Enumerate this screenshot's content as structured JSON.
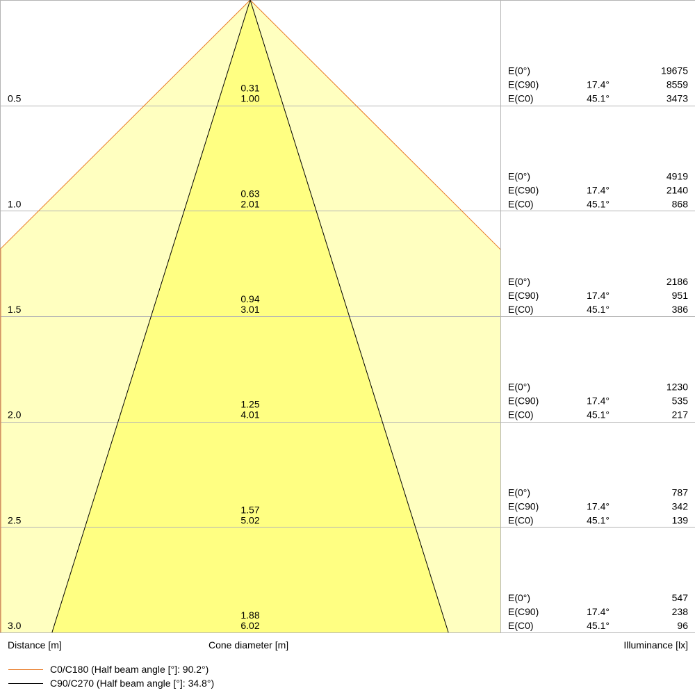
{
  "chart_data": {
    "type": "beam cone diagram",
    "rows": [
      {
        "distance": "0.5",
        "cone_c90": "0.31",
        "cone_c0": "1.00",
        "e0": "19675",
        "ec90_angle": "17.4°",
        "ec90": "8559",
        "ec0_angle": "45.1°",
        "ec0": "3473"
      },
      {
        "distance": "1.0",
        "cone_c90": "0.63",
        "cone_c0": "2.01",
        "e0": "4919",
        "ec90_angle": "17.4°",
        "ec90": "2140",
        "ec0_angle": "45.1°",
        "ec0": "868"
      },
      {
        "distance": "1.5",
        "cone_c90": "0.94",
        "cone_c0": "3.01",
        "e0": "2186",
        "ec90_angle": "17.4°",
        "ec90": "951",
        "ec0_angle": "45.1°",
        "ec0": "386"
      },
      {
        "distance": "2.0",
        "cone_c90": "1.25",
        "cone_c0": "4.01",
        "e0": "1230",
        "ec90_angle": "17.4°",
        "ec90": "535",
        "ec0_angle": "45.1°",
        "ec0": "217"
      },
      {
        "distance": "2.5",
        "cone_c90": "1.57",
        "cone_c0": "5.02",
        "e0": "787",
        "ec90_angle": "17.4°",
        "ec90": "342",
        "ec0_angle": "45.1°",
        "ec0": "139"
      },
      {
        "distance": "3.0",
        "cone_c90": "1.88",
        "cone_c0": "6.02",
        "e0": "547",
        "ec90_angle": "17.4°",
        "ec90": "238",
        "ec0_angle": "45.1°",
        "ec0": "96"
      }
    ],
    "e0_label": "E(0°)",
    "ec90_label": "E(C90)",
    "ec0_label": "E(C0)",
    "half_beam_angle_c0_deg": 90.2,
    "half_beam_angle_c90_deg": 34.8,
    "distance_range_m": [
      0,
      3.0
    ]
  },
  "labels": {
    "distance_axis": "Distance [m]",
    "cone_axis": "Cone diameter [m]",
    "illuminance_axis": "Illuminance [lx]",
    "legend_c0": "C0/C180 (Half beam angle [°]: 90.2°)",
    "legend_c90": "C90/C270 (Half beam angle [°]: 34.8°)"
  },
  "colors": {
    "c0_line": "#e87722",
    "c90_line": "#000000",
    "outer_fill": "#ffffc0",
    "inner_fill": "#ffff82",
    "grid": "#b4b4b4"
  }
}
